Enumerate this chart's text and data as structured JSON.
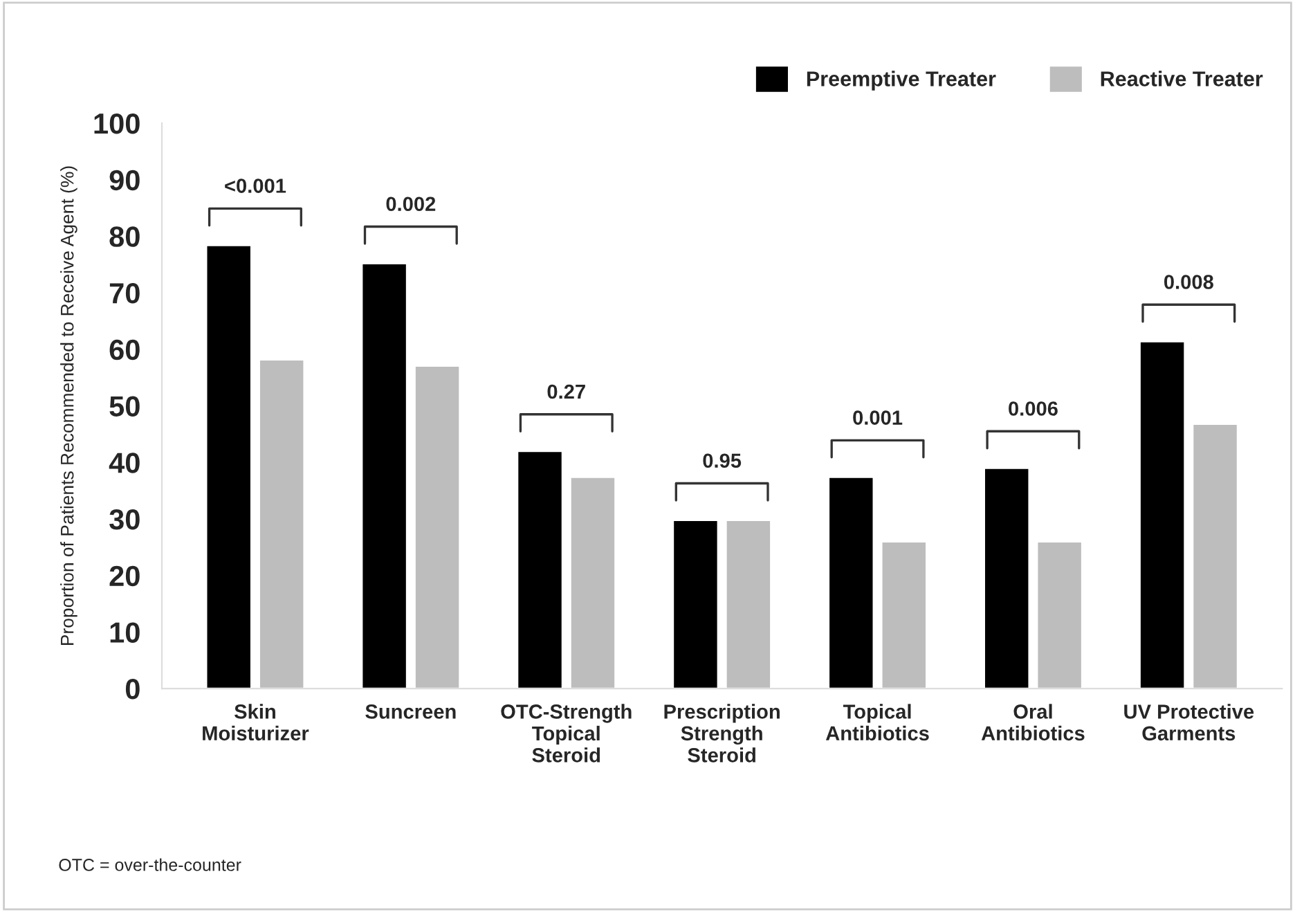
{
  "chart_data": {
    "type": "bar",
    "ylabel": "Proportion of Patients Recommended to Receive Agent (%)",
    "categories": [
      "Skin\nMoisturizer",
      "Suncreen",
      "OTC-Strength\nTopical\nSteroid",
      "Prescription\nStrength\nSteroid",
      "Topical\nAntibiotics",
      "Oral\nAntibiotics",
      "UV Protective\nGarments"
    ],
    "series": [
      {
        "name": "Preemptive Treater",
        "color": "#000000",
        "values": [
          78.4,
          75.2,
          42.0,
          29.8,
          37.4,
          39.0,
          61.4
        ]
      },
      {
        "name": "Reactive Treater",
        "color": "#bdbdbd",
        "values": [
          58.2,
          57.1,
          37.4,
          29.8,
          26.0,
          26.0,
          46.8
        ]
      }
    ],
    "ylim": [
      0,
      100
    ],
    "yticks": [
      0,
      10,
      20,
      30,
      40,
      50,
      60,
      70,
      80,
      90,
      100
    ],
    "grid": false,
    "legend": "top right",
    "annotations": [
      "<0.001",
      "0.002",
      "0.27",
      "0.95",
      "0.001",
      "0.006",
      "0.008",
      "OTC = over-the-counter"
    ]
  }
}
